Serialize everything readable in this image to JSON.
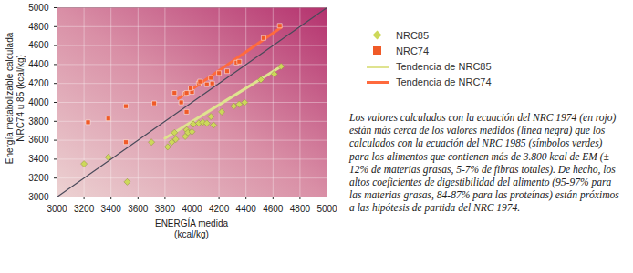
{
  "chart_data": {
    "type": "scatter",
    "xlabel": "ENERGÍA medida\n(kcal/kg)",
    "ylabel": "Energía metabolizable calculada\nNRC74 u 85 (kcal/kg)",
    "xlim": [
      3000,
      5000
    ],
    "ylim": [
      3000,
      5000
    ],
    "xticks": [
      3000,
      3200,
      3400,
      3600,
      3800,
      4000,
      4200,
      4400,
      4600,
      4800,
      5000
    ],
    "yticks": [
      3000,
      3200,
      3400,
      3600,
      3800,
      4000,
      4200,
      4400,
      4600,
      4800,
      5000
    ],
    "grid": true,
    "legend": "right",
    "caption": "Los valores calculados con la ecuación del NRC 1974 (en rojo) están más cerca de los valores medidos (línea negra) que los calculados con la ecuación del NRC 1985 (símbolos verdes) para los alimentos que contienen más de 3.800 kcal de EM (± 12% de materias grasas, 5-7% de fibras totales). De hecho, los altos coeficientes de digestibilidad del alimento (95-97% para las materias grasas, 84-87% para las proteínas) están próximos a las hipótesis de partida del NRC 1974.",
    "series": [
      {
        "name": "NRC85",
        "type": "scatter",
        "marker": "diamond",
        "color": "#cdd85a",
        "x": [
          3200,
          3380,
          3520,
          3700,
          3820,
          3850,
          3880,
          3870,
          3950,
          3960,
          3970,
          4000,
          4010,
          4050,
          4080,
          4110,
          4140,
          4160,
          4220,
          4310,
          4350,
          4390,
          4510,
          4610,
          4660
        ],
        "values": [
          3350,
          3420,
          3160,
          3580,
          3530,
          3580,
          3610,
          3680,
          3640,
          3710,
          3680,
          3690,
          3770,
          3780,
          3790,
          3780,
          3850,
          3760,
          3900,
          3960,
          3980,
          4000,
          4240,
          4300,
          4380
        ]
      },
      {
        "name": "NRC74",
        "type": "scatter",
        "marker": "square",
        "color": "#f05a28",
        "x": [
          3230,
          3380,
          3510,
          3510,
          3720,
          3870,
          3920,
          3950,
          3960,
          4000,
          3960,
          3990,
          4050,
          4060,
          4110,
          4140,
          4150,
          4200,
          4260,
          4330,
          4350,
          4530,
          4650
        ],
        "values": [
          3790,
          3830,
          3960,
          3580,
          3990,
          4100,
          4000,
          4090,
          4100,
          4110,
          3900,
          4150,
          4200,
          4220,
          4190,
          4260,
          4200,
          4310,
          4330,
          4420,
          4430,
          4680,
          4810
        ]
      },
      {
        "name": "Tendencia de NRC85",
        "type": "line",
        "line_style": "solid",
        "color": "#dfe38f",
        "x": [
          3800,
          4660
        ],
        "values": [
          3620,
          4380
        ]
      },
      {
        "name": "Tendencia de NRC74",
        "type": "line",
        "line_style": "solid",
        "color": "#ff6a3d",
        "x": [
          3900,
          4660
        ],
        "values": [
          4040,
          4790
        ]
      },
      {
        "type": "line",
        "line_style": "solid",
        "color": "#4a4a5a",
        "x": [
          3000,
          5000
        ],
        "values": [
          3000,
          5000
        ]
      }
    ]
  }
}
